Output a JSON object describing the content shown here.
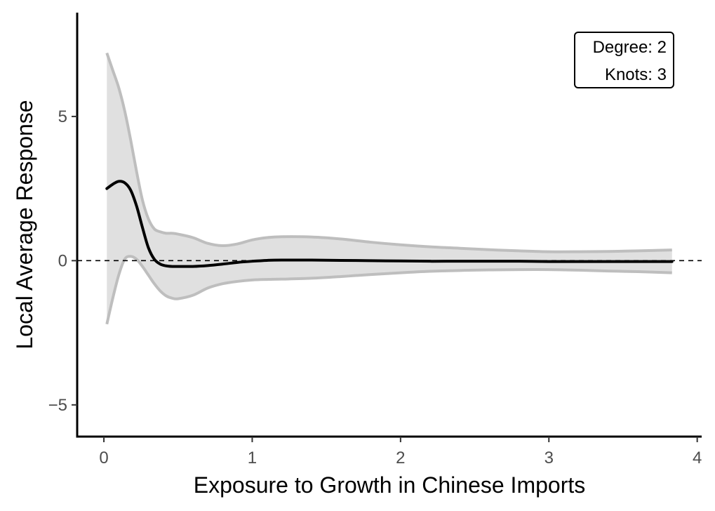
{
  "chart_data": {
    "type": "line",
    "xlabel": "Exposure to Growth in Chinese Imports",
    "ylabel": "Local Average Response",
    "xlim": [
      -0.18,
      4.03
    ],
    "ylim": [
      -6.1,
      8.6
    ],
    "xticks": [
      0,
      1,
      2,
      3,
      4
    ],
    "yticks": [
      -5,
      0,
      5
    ],
    "ytick_labels": [
      "−5",
      "0",
      "5"
    ],
    "reference_line_y": 0,
    "grid": false,
    "annotation": {
      "position": "top-right",
      "lines": [
        "Degree: 2",
        "Knots: 3"
      ]
    },
    "colors": {
      "estimate": "#000000",
      "band_fill": "#e0e0e0",
      "band_edge": "#bebebe",
      "axis": "#000000",
      "tick_text": "#4d4d4d"
    },
    "x": [
      0.02,
      0.06,
      0.1,
      0.14,
      0.18,
      0.22,
      0.26,
      0.3,
      0.34,
      0.38,
      0.42,
      0.46,
      0.5,
      0.6,
      0.7,
      0.8,
      0.9,
      1.0,
      1.1,
      1.2,
      1.4,
      1.6,
      1.8,
      2.0,
      2.2,
      2.4,
      2.6,
      2.8,
      3.0,
      3.2,
      3.4,
      3.6,
      3.83
    ],
    "series": [
      {
        "role": "estimate",
        "values": [
          2.5,
          2.65,
          2.75,
          2.7,
          2.45,
          1.9,
          1.15,
          0.45,
          0.05,
          -0.12,
          -0.18,
          -0.2,
          -0.2,
          -0.2,
          -0.17,
          -0.12,
          -0.06,
          -0.02,
          0.01,
          0.02,
          0.02,
          0.01,
          0.0,
          -0.01,
          -0.02,
          -0.02,
          -0.02,
          -0.02,
          -0.03,
          -0.03,
          -0.03,
          -0.03,
          -0.03
        ]
      },
      {
        "role": "ci_upper",
        "values": [
          7.2,
          6.6,
          6.0,
          5.2,
          4.2,
          3.1,
          2.1,
          1.45,
          1.1,
          1.0,
          0.95,
          0.95,
          0.92,
          0.8,
          0.6,
          0.52,
          0.58,
          0.72,
          0.8,
          0.83,
          0.82,
          0.75,
          0.64,
          0.55,
          0.48,
          0.43,
          0.38,
          0.34,
          0.31,
          0.31,
          0.32,
          0.34,
          0.37
        ]
      },
      {
        "role": "ci_lower",
        "values": [
          -2.2,
          -1.3,
          -0.5,
          0.05,
          0.15,
          0.05,
          -0.2,
          -0.5,
          -0.8,
          -1.05,
          -1.22,
          -1.3,
          -1.32,
          -1.2,
          -0.95,
          -0.8,
          -0.72,
          -0.67,
          -0.65,
          -0.64,
          -0.61,
          -0.55,
          -0.48,
          -0.42,
          -0.37,
          -0.34,
          -0.32,
          -0.31,
          -0.31,
          -0.33,
          -0.36,
          -0.38,
          -0.42
        ]
      }
    ]
  }
}
